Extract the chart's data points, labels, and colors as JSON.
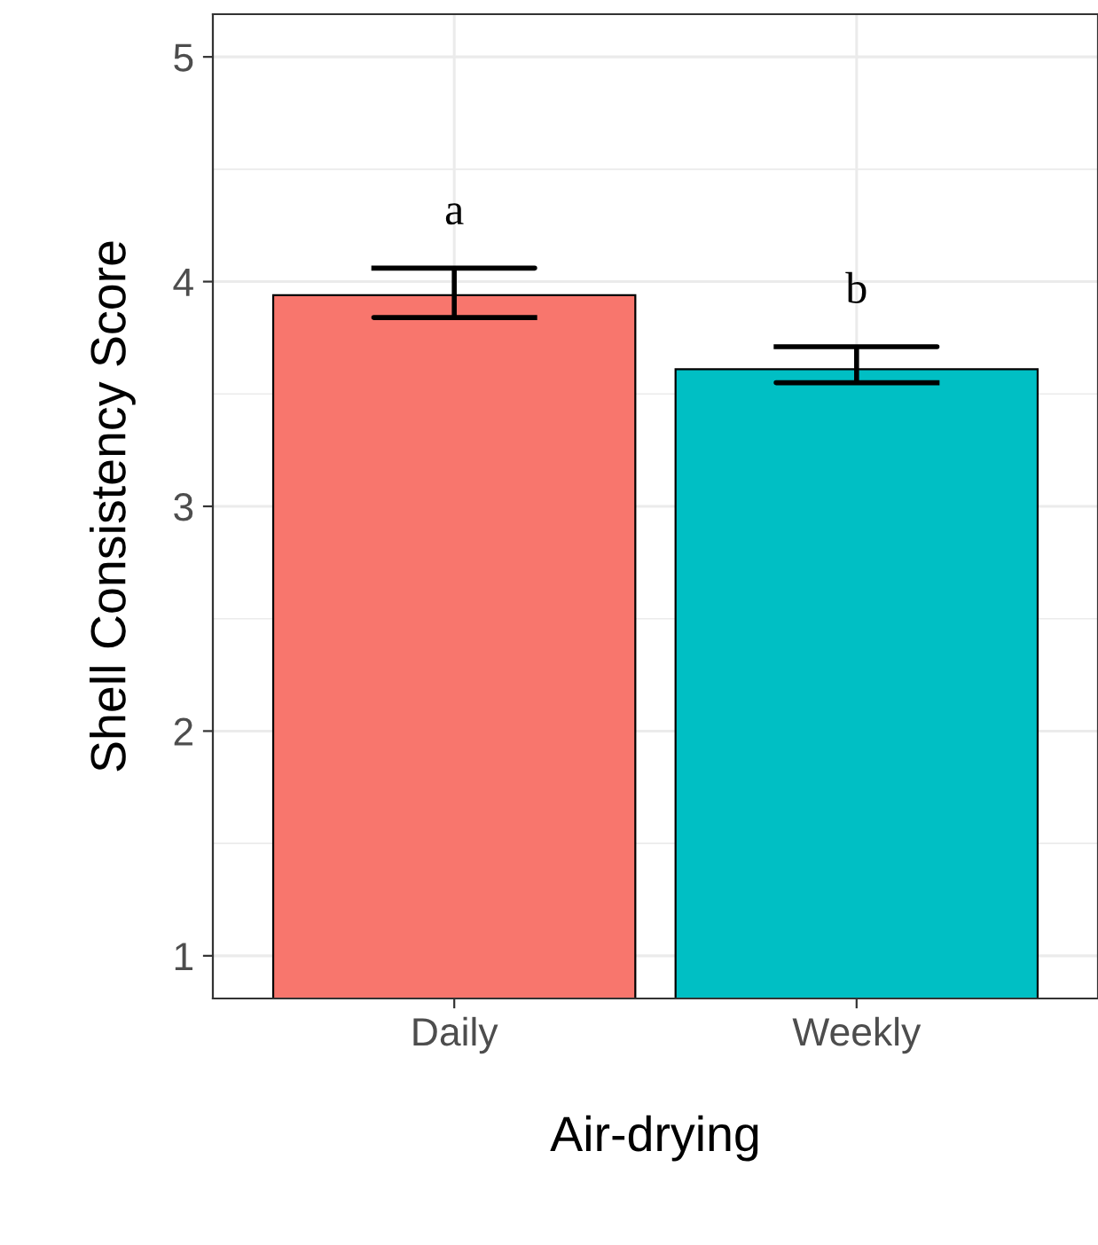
{
  "chart_data": {
    "type": "bar",
    "xlabel": "Air-drying",
    "ylabel": "Shell Consistency Score",
    "categories": [
      "Daily",
      "Weekly"
    ],
    "values": [
      3.94,
      3.61
    ],
    "colors": [
      "#f8766d",
      "#00bfc4"
    ],
    "errors": [
      [
        3.84,
        4.06
      ],
      [
        3.55,
        3.71
      ]
    ],
    "ylim": [
      0.81,
      5.19
    ],
    "yticks": [
      1,
      2,
      3,
      4,
      5
    ],
    "grid": true,
    "annotations": [
      "a",
      "b"
    ]
  }
}
